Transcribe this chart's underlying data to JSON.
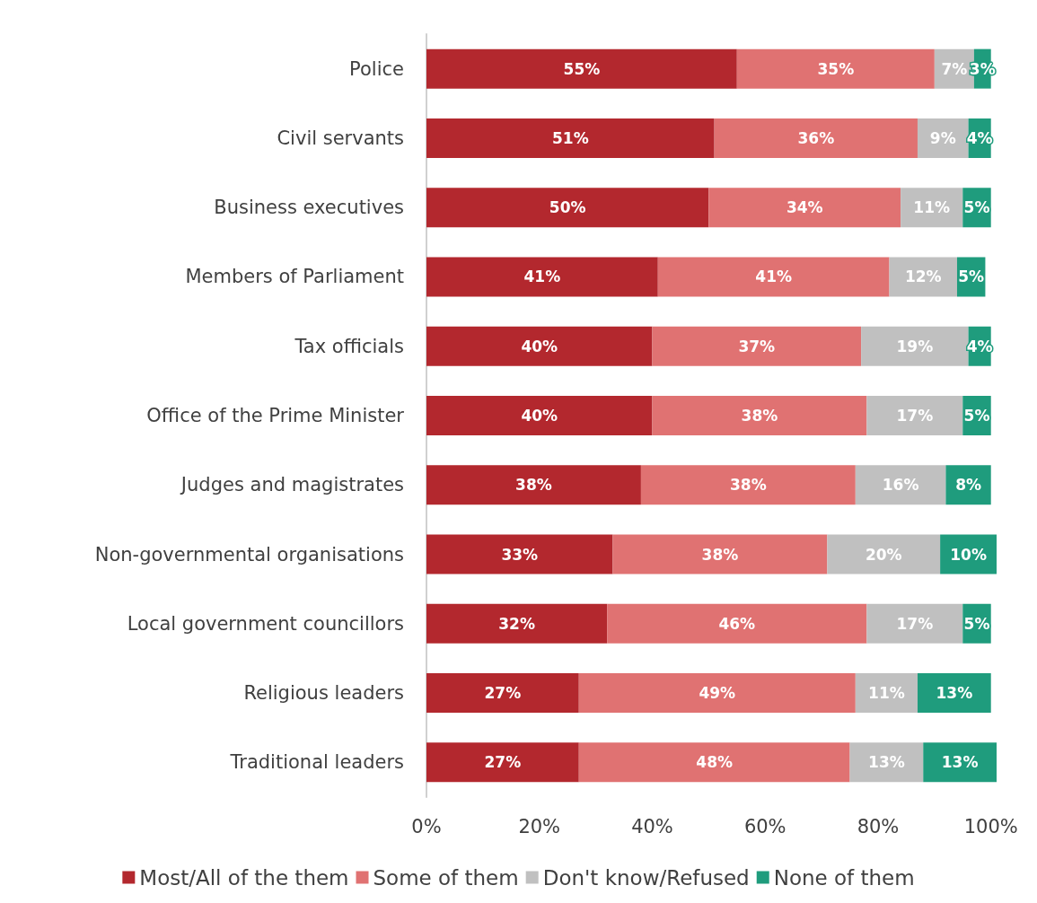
{
  "chart_data": {
    "type": "bar",
    "orientation": "horizontal",
    "stacked": true,
    "legend": "bottom",
    "grid": false,
    "categories": [
      "Police",
      "Civil servants",
      "Business executives",
      "Members of Parliament",
      "Tax officials",
      "Office of the Prime Minister",
      "Judges and magistrates",
      "Non-governmental organisations",
      "Local government councillors",
      "Religious leaders",
      "Traditional leaders"
    ],
    "series": [
      {
        "name": "Most/All of the them",
        "color": "#b3282e",
        "values": [
          55,
          51,
          50,
          41,
          40,
          40,
          38,
          33,
          32,
          27,
          27
        ],
        "value_labels": [
          "55%",
          "51%",
          "50%",
          "41%",
          "40%",
          "40%",
          "38%",
          "33%",
          "32%",
          "27%",
          "27%"
        ]
      },
      {
        "name": "Some of them",
        "color": "#e07272",
        "values": [
          35,
          36,
          34,
          41,
          37,
          38,
          38,
          38,
          46,
          49,
          48
        ],
        "value_labels": [
          "35%",
          "36%",
          "34%",
          "41%",
          "37%",
          "38%",
          "38%",
          "38%",
          "46%",
          "49%",
          "48%"
        ]
      },
      {
        "name": "Don't know/Refused",
        "color": "#c0c0c0",
        "values": [
          7,
          9,
          11,
          12,
          19,
          17,
          16,
          20,
          17,
          11,
          13
        ],
        "value_labels": [
          "7%",
          "9%",
          "11%",
          "12%",
          "19%",
          "17%",
          "16%",
          "20%",
          "17%",
          "11%",
          "13%"
        ]
      },
      {
        "name": "None of them",
        "color": "#1f9c7d",
        "values": [
          3,
          4,
          5,
          5,
          4,
          5,
          8,
          10,
          5,
          13,
          13
        ],
        "value_labels": [
          "3%",
          "4%",
          "5%",
          "5%",
          "4%",
          "5%",
          "8%",
          "10%",
          "5%",
          "13%",
          "13%"
        ]
      }
    ],
    "xlim": [
      0,
      101
    ],
    "xticks": [
      {
        "value": 0,
        "label": "0%"
      },
      {
        "value": 20,
        "label": "20%"
      },
      {
        "value": 40,
        "label": "40%"
      },
      {
        "value": 60,
        "label": "60%"
      },
      {
        "value": 80,
        "label": "80%"
      },
      {
        "value": 100,
        "label": "100%"
      }
    ]
  }
}
